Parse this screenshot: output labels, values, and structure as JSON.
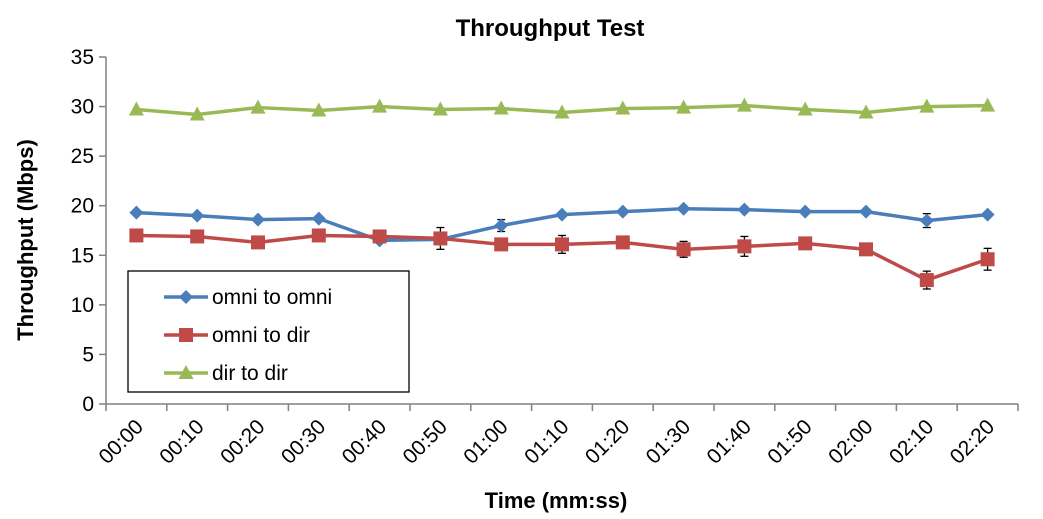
{
  "chart_data": {
    "type": "line",
    "title": "Throughput Test",
    "xlabel": "Time (mm:ss)",
    "ylabel": "Throughput (Mbps)",
    "ylim": [
      0,
      35
    ],
    "yticks": [
      "0",
      "5",
      "10",
      "15",
      "20",
      "25",
      "30",
      "35"
    ],
    "categories": [
      "00:00",
      "00:10",
      "00:20",
      "00:30",
      "00:40",
      "00:50",
      "01:00",
      "01:10",
      "01:20",
      "01:30",
      "01:40",
      "01:50",
      "02:00",
      "02:10",
      "02:20"
    ],
    "legend_position": "bottom-left",
    "grid": false,
    "series": [
      {
        "name": "omni to omni",
        "color": "#4a7ebb",
        "marker": "diamond",
        "values": [
          19.3,
          19.0,
          18.6,
          18.7,
          16.5,
          16.6,
          18.0,
          19.1,
          19.4,
          19.7,
          19.6,
          19.4,
          19.4,
          18.5,
          19.1
        ],
        "errors": [
          0,
          0,
          0,
          0,
          0,
          0,
          0.6,
          0,
          0,
          0,
          0,
          0,
          0,
          0.7,
          0
        ]
      },
      {
        "name": "omni to dir",
        "color": "#be4b48",
        "marker": "square",
        "values": [
          17.0,
          16.9,
          16.3,
          17.0,
          16.9,
          16.7,
          16.1,
          16.1,
          16.3,
          15.6,
          15.9,
          16.2,
          15.6,
          12.5,
          14.6
        ],
        "errors": [
          0,
          0,
          0,
          0,
          0,
          1.1,
          0,
          0.9,
          0,
          0.8,
          1.0,
          0,
          0,
          0.9,
          1.1
        ]
      },
      {
        "name": "dir to dir",
        "color": "#98b954",
        "marker": "triangle",
        "values": [
          29.7,
          29.2,
          29.9,
          29.6,
          30.0,
          29.7,
          29.8,
          29.4,
          29.8,
          29.9,
          30.1,
          29.7,
          29.4,
          30.0,
          30.1
        ],
        "errors": [
          0,
          0,
          0,
          0,
          0,
          0,
          0,
          0,
          0,
          0,
          0,
          0,
          0,
          0,
          0
        ]
      }
    ]
  }
}
